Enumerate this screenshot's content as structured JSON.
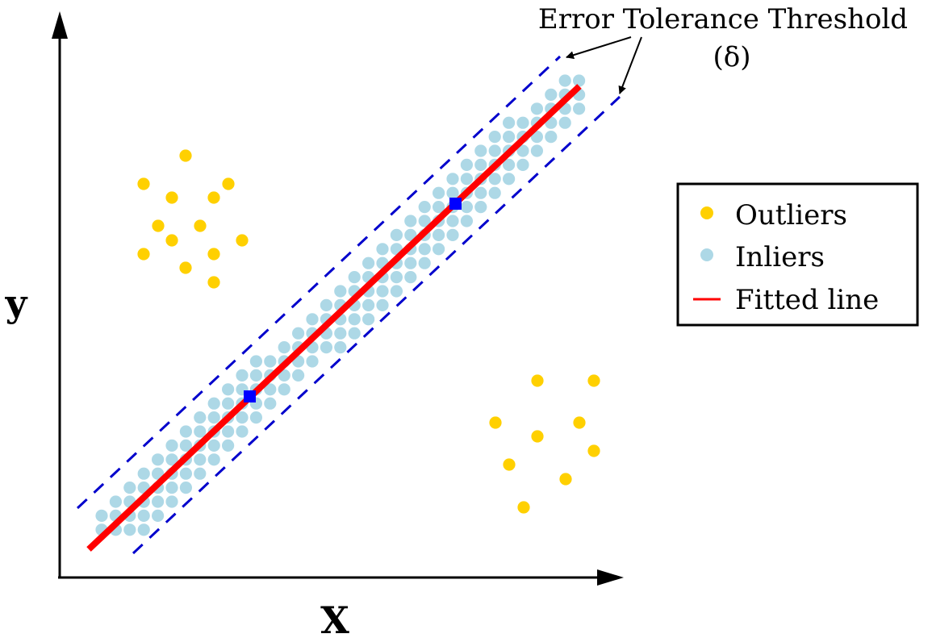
{
  "diagram": {
    "axes": {
      "x_label": "X",
      "y_label": "y"
    },
    "annotation": {
      "line1": "Error Tolerance Threshold",
      "line2": "(δ)"
    },
    "legend": {
      "items": [
        {
          "label": "Outliers",
          "kind": "dot",
          "color": "#ffd000"
        },
        {
          "label": "Inliers",
          "kind": "dot",
          "color": "#add8e6"
        },
        {
          "label": "Fitted line",
          "kind": "line",
          "color": "#ff0000"
        }
      ]
    },
    "colors": {
      "outlier": "#ffd000",
      "inlier": "#add8e6",
      "fitted_line": "#ff0000",
      "threshold_band": "#0000cc",
      "sample_point": "#0000ff",
      "axis": "#000000"
    }
  }
}
